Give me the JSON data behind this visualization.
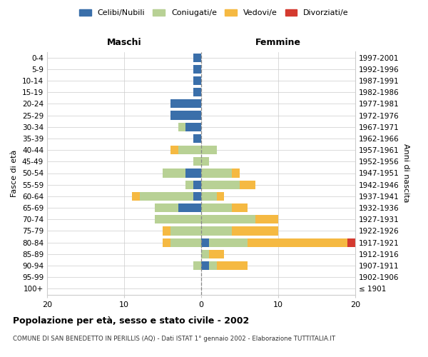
{
  "age_groups": [
    "100+",
    "95-99",
    "90-94",
    "85-89",
    "80-84",
    "75-79",
    "70-74",
    "65-69",
    "60-64",
    "55-59",
    "50-54",
    "45-49",
    "40-44",
    "35-39",
    "30-34",
    "25-29",
    "20-24",
    "15-19",
    "10-14",
    "5-9",
    "0-4"
  ],
  "birth_years": [
    "≤ 1901",
    "1902-1906",
    "1907-1911",
    "1912-1916",
    "1917-1921",
    "1922-1926",
    "1927-1931",
    "1932-1936",
    "1937-1941",
    "1942-1946",
    "1947-1951",
    "1952-1956",
    "1957-1961",
    "1962-1966",
    "1967-1971",
    "1972-1976",
    "1977-1981",
    "1982-1986",
    "1987-1991",
    "1992-1996",
    "1997-2001"
  ],
  "males": {
    "celibi": [
      0,
      0,
      0,
      0,
      0,
      0,
      0,
      3,
      1,
      1,
      2,
      0,
      0,
      1,
      2,
      4,
      4,
      1,
      1,
      1,
      1
    ],
    "coniugati": [
      0,
      0,
      1,
      0,
      4,
      4,
      6,
      3,
      7,
      1,
      3,
      1,
      3,
      0,
      1,
      0,
      0,
      0,
      0,
      0,
      0
    ],
    "vedovi": [
      0,
      0,
      0,
      0,
      1,
      1,
      0,
      0,
      1,
      0,
      0,
      0,
      1,
      0,
      0,
      0,
      0,
      0,
      0,
      0,
      0
    ],
    "divorziati": [
      0,
      0,
      0,
      0,
      0,
      0,
      0,
      0,
      0,
      0,
      0,
      0,
      0,
      0,
      0,
      0,
      0,
      0,
      0,
      0,
      0
    ]
  },
  "females": {
    "nubili": [
      0,
      0,
      1,
      0,
      1,
      0,
      0,
      0,
      0,
      0,
      0,
      0,
      0,
      0,
      0,
      0,
      0,
      0,
      0,
      0,
      0
    ],
    "coniugate": [
      0,
      0,
      1,
      1,
      5,
      4,
      7,
      4,
      2,
      5,
      4,
      1,
      2,
      0,
      0,
      0,
      0,
      0,
      0,
      0,
      0
    ],
    "vedove": [
      0,
      0,
      4,
      2,
      13,
      6,
      3,
      2,
      1,
      2,
      1,
      0,
      0,
      0,
      0,
      0,
      0,
      0,
      0,
      0,
      0
    ],
    "divorziate": [
      0,
      0,
      0,
      0,
      1,
      0,
      0,
      0,
      0,
      0,
      0,
      0,
      0,
      0,
      0,
      0,
      0,
      0,
      0,
      0,
      0
    ]
  },
  "colors": {
    "celibi_nubili": "#3a6faa",
    "coniugati": "#b8d195",
    "vedovi": "#f5b942",
    "divorziati": "#d43a2f"
  },
  "xlim": [
    -20,
    20
  ],
  "xticks": [
    -20,
    -10,
    0,
    10,
    20
  ],
  "xticklabels": [
    "20",
    "10",
    "0",
    "10",
    "20"
  ],
  "title": "Popolazione per età, sesso e stato civile - 2002",
  "subtitle": "COMUNE DI SAN BENEDETTO IN PERILLIS (AQ) - Dati ISTAT 1° gennaio 2002 - Elaborazione TUTTITALIA.IT",
  "ylabel_left": "Fasce di età",
  "ylabel_right": "Anni di nascita",
  "label_maschi": "Maschi",
  "label_femmine": "Femmine",
  "legend_labels": [
    "Celibi/Nubili",
    "Coniugati/e",
    "Vedovi/e",
    "Divorziati/e"
  ],
  "background_color": "#ffffff",
  "grid_color": "#cccccc"
}
